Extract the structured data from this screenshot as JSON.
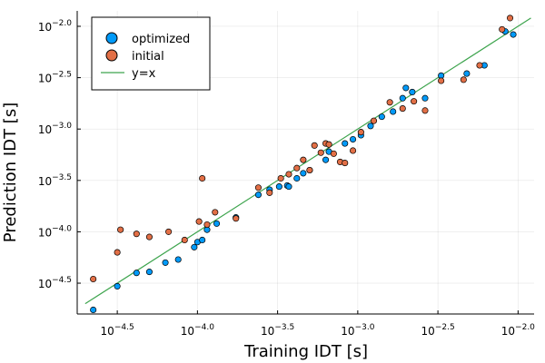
{
  "chart_data": {
    "type": "scatter",
    "title": "",
    "xlabel": "Training IDT [s]",
    "ylabel": "Prediction IDT [s]",
    "xscale": "log10",
    "yscale": "log10",
    "xlim_exp": [
      -4.75,
      -1.9
    ],
    "ylim_exp": [
      -4.8,
      -1.85
    ],
    "xtick_exponents": [
      "-4.5",
      "-4.0",
      "-3.5",
      "-3.0",
      "-2.5",
      "-2.0"
    ],
    "ytick_exponents": [
      "-4.5",
      "-4.0",
      "-3.5",
      "-3.0",
      "-2.5",
      "-2.0"
    ],
    "tick_base": "10",
    "grid": true,
    "legend_position": "top-left",
    "colors": {
      "optimized": "#009af9",
      "initial": "#e26f46",
      "reference": "#3da44d"
    },
    "series": [
      {
        "name": "optimized",
        "kind": "scatter",
        "points_log10": [
          [
            -4.65,
            -4.76
          ],
          [
            -4.5,
            -4.53
          ],
          [
            -4.38,
            -4.4
          ],
          [
            -4.3,
            -4.39
          ],
          [
            -4.2,
            -4.3
          ],
          [
            -4.12,
            -4.27
          ],
          [
            -4.02,
            -4.15
          ],
          [
            -4.0,
            -4.1
          ],
          [
            -3.97,
            -4.08
          ],
          [
            -3.94,
            -3.98
          ],
          [
            -3.88,
            -3.92
          ],
          [
            -3.76,
            -3.86
          ],
          [
            -3.62,
            -3.64
          ],
          [
            -3.55,
            -3.59
          ],
          [
            -3.49,
            -3.56
          ],
          [
            -3.44,
            -3.55
          ],
          [
            -3.43,
            -3.56
          ],
          [
            -3.38,
            -3.48
          ],
          [
            -3.34,
            -3.43
          ],
          [
            -3.3,
            -3.4
          ],
          [
            -3.2,
            -3.3
          ],
          [
            -3.18,
            -3.22
          ],
          [
            -3.08,
            -3.14
          ],
          [
            -3.03,
            -3.1
          ],
          [
            -2.98,
            -3.06
          ],
          [
            -2.92,
            -2.97
          ],
          [
            -2.85,
            -2.88
          ],
          [
            -2.78,
            -2.83
          ],
          [
            -2.72,
            -2.7
          ],
          [
            -2.7,
            -2.6
          ],
          [
            -2.66,
            -2.64
          ],
          [
            -2.58,
            -2.7
          ],
          [
            -2.48,
            -2.48
          ],
          [
            -2.32,
            -2.46
          ],
          [
            -2.21,
            -2.38
          ],
          [
            -2.08,
            -2.05
          ],
          [
            -2.03,
            -2.08
          ]
        ]
      },
      {
        "name": "initial",
        "kind": "scatter",
        "points_log10": [
          [
            -4.65,
            -4.46
          ],
          [
            -4.5,
            -4.2
          ],
          [
            -4.48,
            -3.98
          ],
          [
            -4.38,
            -4.02
          ],
          [
            -4.3,
            -4.05
          ],
          [
            -4.18,
            -4.0
          ],
          [
            -4.08,
            -4.08
          ],
          [
            -3.99,
            -3.9
          ],
          [
            -3.97,
            -3.48
          ],
          [
            -3.94,
            -3.93
          ],
          [
            -3.89,
            -3.81
          ],
          [
            -3.76,
            -3.87
          ],
          [
            -3.62,
            -3.57
          ],
          [
            -3.55,
            -3.62
          ],
          [
            -3.48,
            -3.48
          ],
          [
            -3.43,
            -3.44
          ],
          [
            -3.38,
            -3.38
          ],
          [
            -3.34,
            -3.3
          ],
          [
            -3.3,
            -3.4
          ],
          [
            -3.27,
            -3.16
          ],
          [
            -3.23,
            -3.23
          ],
          [
            -3.2,
            -3.14
          ],
          [
            -3.18,
            -3.15
          ],
          [
            -3.15,
            -3.24
          ],
          [
            -3.11,
            -3.32
          ],
          [
            -3.08,
            -3.33
          ],
          [
            -3.03,
            -3.21
          ],
          [
            -2.98,
            -3.03
          ],
          [
            -2.9,
            -2.92
          ],
          [
            -2.8,
            -2.74
          ],
          [
            -2.72,
            -2.8
          ],
          [
            -2.65,
            -2.73
          ],
          [
            -2.58,
            -2.82
          ],
          [
            -2.48,
            -2.53
          ],
          [
            -2.34,
            -2.52
          ],
          [
            -2.24,
            -2.38
          ],
          [
            -2.1,
            -2.03
          ],
          [
            -2.05,
            -1.92
          ]
        ]
      },
      {
        "name": "y=x",
        "kind": "line",
        "points_log10": [
          [
            -4.7,
            -4.7
          ],
          [
            -1.92,
            -1.92
          ]
        ]
      }
    ],
    "legend": {
      "optimized": "optimized",
      "initial": "initial",
      "reference": "y=x"
    }
  }
}
